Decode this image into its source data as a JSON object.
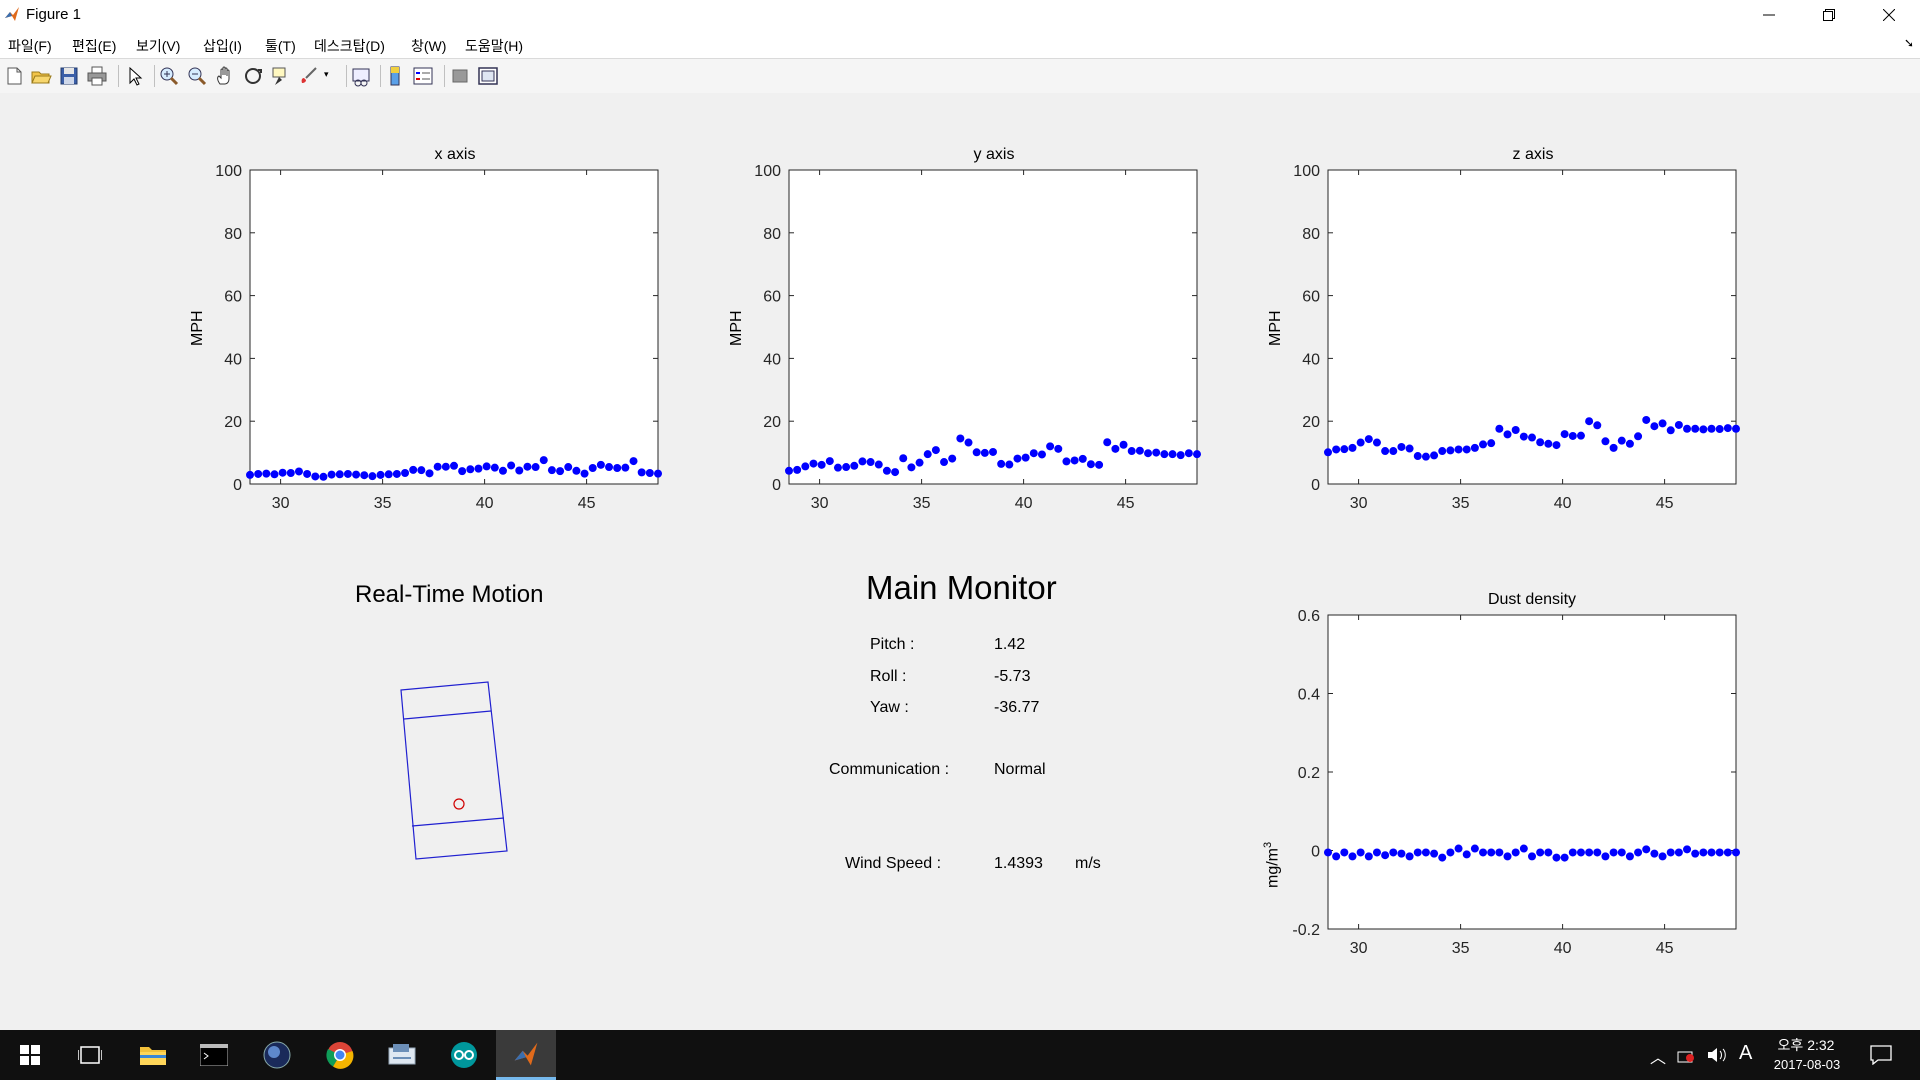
{
  "window": {
    "title": "Figure 1"
  },
  "menu": [
    "파일(F)",
    "편집(E)",
    "보기(V)",
    "삽입(I)",
    "툴(T)",
    "데스크탑(D)",
    "창(W)",
    "도움말(H)"
  ],
  "toolbar_icons": [
    "new-figure-icon",
    "open-file-icon",
    "save-icon",
    "print-icon",
    "pointer-icon",
    "zoom-in-icon",
    "zoom-out-icon",
    "pan-hand-icon",
    "rotate-3d-icon",
    "data-cursor-icon",
    "brush-icon",
    "link-plot-icon",
    "colorbar-icon",
    "legend-icon",
    "hide-plot-tools-icon",
    "show-plot-tools-icon"
  ],
  "plots": {
    "x_axis": {
      "title": "x axis",
      "ylabel": "MPH"
    },
    "y_axis": {
      "title": "y axis",
      "ylabel": "MPH"
    },
    "z_axis": {
      "title": "z axis",
      "ylabel": "MPH"
    },
    "dust": {
      "title": "Dust density",
      "ylabel": "mg/m",
      "ylabel_sup": "3"
    }
  },
  "motion": {
    "title": "Real-Time Motion"
  },
  "monitor": {
    "title": "Main Monitor",
    "pitch_label": "Pitch :",
    "pitch_value": "1.42",
    "roll_label": "Roll :",
    "roll_value": "-5.73",
    "yaw_label": "Yaw :",
    "yaw_value": "-36.77",
    "comm_label": "Communication :",
    "comm_value": "Normal",
    "wind_label": "Wind Speed :",
    "wind_value": "1.4393",
    "wind_unit": "m/s"
  },
  "chart_data": [
    {
      "type": "scatter",
      "title": "x axis",
      "xlabel": "",
      "ylabel": "MPH",
      "xlim": [
        28.5,
        48.5
      ],
      "ylim": [
        0,
        100
      ],
      "xticks": [
        30,
        35,
        40,
        45
      ],
      "yticks": [
        0,
        20,
        40,
        60,
        80,
        100
      ],
      "color": "#0000ff",
      "series": [
        {
          "x": [
            28.5,
            28.9,
            29.3,
            29.7,
            30.1,
            30.5,
            30.9,
            31.3,
            31.7,
            32.1,
            32.5,
            32.9,
            33.3,
            33.7,
            34.1,
            34.5,
            34.9,
            35.3,
            35.7,
            36.1,
            36.5,
            36.9,
            37.3,
            37.7,
            38.1,
            38.5,
            38.9,
            39.3,
            39.7,
            40.1,
            40.5,
            40.9,
            41.3,
            41.7,
            42.1,
            42.5,
            42.9,
            43.3,
            43.7,
            44.1,
            44.5,
            44.9,
            45.3,
            45.7,
            46.1,
            46.5,
            46.9,
            47.3,
            47.7,
            48.1,
            48.5
          ],
          "y": [
            2.9,
            3.2,
            3.3,
            3.1,
            3.6,
            3.5,
            4.0,
            3.2,
            2.4,
            2.3,
            3.0,
            3.1,
            3.2,
            3.0,
            2.8,
            2.5,
            2.9,
            3.1,
            3.2,
            3.5,
            4.5,
            4.4,
            3.4,
            5.5,
            5.5,
            5.8,
            4.1,
            4.7,
            4.9,
            5.6,
            5.2,
            4.2,
            5.9,
            4.3,
            5.5,
            5.4,
            7.6,
            4.4,
            4.1,
            5.4,
            4.2,
            3.3,
            5.1,
            6.1,
            5.4,
            5.1,
            5.2,
            7.3,
            3.7,
            3.5,
            3.3
          ]
        }
      ]
    },
    {
      "type": "scatter",
      "title": "y axis",
      "xlabel": "",
      "ylabel": "MPH",
      "xlim": [
        28.5,
        48.5
      ],
      "ylim": [
        0,
        100
      ],
      "xticks": [
        30,
        35,
        40,
        45
      ],
      "yticks": [
        0,
        20,
        40,
        60,
        80,
        100
      ],
      "color": "#0000ff",
      "series": [
        {
          "x": [
            28.5,
            28.9,
            29.3,
            29.7,
            30.1,
            30.5,
            30.9,
            31.3,
            31.7,
            32.1,
            32.5,
            32.9,
            33.3,
            33.7,
            34.1,
            34.5,
            34.9,
            35.3,
            35.7,
            36.1,
            36.5,
            36.9,
            37.3,
            37.7,
            38.1,
            38.5,
            38.9,
            39.3,
            39.7,
            40.1,
            40.5,
            40.9,
            41.3,
            41.7,
            42.1,
            42.5,
            42.9,
            43.3,
            43.7,
            44.1,
            44.5,
            44.9,
            45.3,
            45.7,
            46.1,
            46.5,
            46.9,
            47.3,
            47.7,
            48.1,
            48.5
          ],
          "y": [
            4.2,
            4.5,
            5.6,
            6.5,
            6.1,
            7.3,
            5.2,
            5.4,
            5.8,
            7.2,
            7.0,
            6.2,
            4.2,
            3.8,
            8.2,
            5.3,
            6.8,
            9.5,
            10.8,
            7.0,
            8.1,
            14.5,
            13.2,
            10.1,
            9.9,
            10.2,
            6.4,
            6.2,
            8.1,
            8.4,
            9.8,
            9.4,
            12.0,
            11.2,
            7.2,
            7.5,
            8.0,
            6.3,
            6.1,
            13.3,
            11.2,
            12.5,
            10.5,
            10.6,
            9.8,
            10.0,
            9.5,
            9.5,
            9.2,
            9.8,
            9.5
          ]
        }
      ]
    },
    {
      "type": "scatter",
      "title": "z axis",
      "xlabel": "",
      "ylabel": "MPH",
      "xlim": [
        28.5,
        48.5
      ],
      "ylim": [
        0,
        100
      ],
      "xticks": [
        30,
        35,
        40,
        45
      ],
      "yticks": [
        0,
        20,
        40,
        60,
        80,
        100
      ],
      "color": "#0000ff",
      "series": [
        {
          "x": [
            28.5,
            28.9,
            29.3,
            29.7,
            30.1,
            30.5,
            30.9,
            31.3,
            31.7,
            32.1,
            32.5,
            32.9,
            33.3,
            33.7,
            34.1,
            34.5,
            34.9,
            35.3,
            35.7,
            36.1,
            36.5,
            36.9,
            37.3,
            37.7,
            38.1,
            38.5,
            38.9,
            39.3,
            39.7,
            40.1,
            40.5,
            40.9,
            41.3,
            41.7,
            42.1,
            42.5,
            42.9,
            43.3,
            43.7,
            44.1,
            44.5,
            44.9,
            45.3,
            45.7,
            46.1,
            46.5,
            46.9,
            47.3,
            47.7,
            48.1,
            48.5
          ],
          "y": [
            10.1,
            11.0,
            11.1,
            11.5,
            13.2,
            14.3,
            13.2,
            10.5,
            10.5,
            11.8,
            11.3,
            8.9,
            8.7,
            9.1,
            10.5,
            10.7,
            11.0,
            11.0,
            11.5,
            12.6,
            13.0,
            17.6,
            15.8,
            17.2,
            15.1,
            14.8,
            13.3,
            12.8,
            12.4,
            15.9,
            15.3,
            15.4,
            20.0,
            18.7,
            13.6,
            11.5,
            13.8,
            12.8,
            15.2,
            20.4,
            18.4,
            19.3,
            17.1,
            18.8,
            17.6,
            17.6,
            17.4,
            17.6,
            17.5,
            17.8,
            17.6
          ]
        }
      ]
    },
    {
      "type": "scatter",
      "title": "Dust density",
      "xlabel": "",
      "ylabel": "mg/m^3",
      "xlim": [
        28.5,
        48.5
      ],
      "ylim": [
        -0.2,
        0.6
      ],
      "xticks": [
        30,
        35,
        40,
        45
      ],
      "yticks": [
        -0.2,
        0,
        0.2,
        0.4,
        0.6
      ],
      "color": "#0000ff",
      "series": [
        {
          "x": [
            28.5,
            28.9,
            29.3,
            29.7,
            30.1,
            30.5,
            30.9,
            31.3,
            31.7,
            32.1,
            32.5,
            32.9,
            33.3,
            33.7,
            34.1,
            34.5,
            34.9,
            35.3,
            35.7,
            36.1,
            36.5,
            36.9,
            37.3,
            37.7,
            38.1,
            38.5,
            38.9,
            39.3,
            39.7,
            40.1,
            40.5,
            40.9,
            41.3,
            41.7,
            42.1,
            42.5,
            42.9,
            43.3,
            43.7,
            44.1,
            44.5,
            44.9,
            45.3,
            45.7,
            46.1,
            46.5,
            46.9,
            47.3,
            47.7,
            48.1,
            48.5
          ],
          "y": [
            -0.005,
            -0.015,
            -0.005,
            -0.015,
            -0.005,
            -0.015,
            -0.005,
            -0.012,
            -0.005,
            -0.008,
            -0.015,
            -0.005,
            -0.005,
            -0.008,
            -0.018,
            -0.005,
            0.005,
            -0.01,
            0.005,
            -0.005,
            -0.005,
            -0.005,
            -0.015,
            -0.005,
            0.005,
            -0.015,
            -0.005,
            -0.005,
            -0.018,
            -0.018,
            -0.005,
            -0.005,
            -0.005,
            -0.005,
            -0.015,
            -0.005,
            -0.005,
            -0.015,
            -0.005,
            0.003,
            -0.008,
            -0.015,
            -0.005,
            -0.005,
            0.003,
            -0.008,
            -0.005,
            -0.005,
            -0.005,
            -0.005,
            -0.005
          ]
        }
      ]
    }
  ],
  "taskbar": {
    "apps": [
      "windows-start-icon",
      "task-view-icon",
      "file-explorer-icon",
      "terminal-icon",
      "browser-orb-icon",
      "chrome-icon",
      "control-panel-icon",
      "arduino-icon",
      "matlab-icon"
    ],
    "clock_time": "오후 2:32",
    "clock_date": "2017-08-03",
    "ime": "A"
  }
}
